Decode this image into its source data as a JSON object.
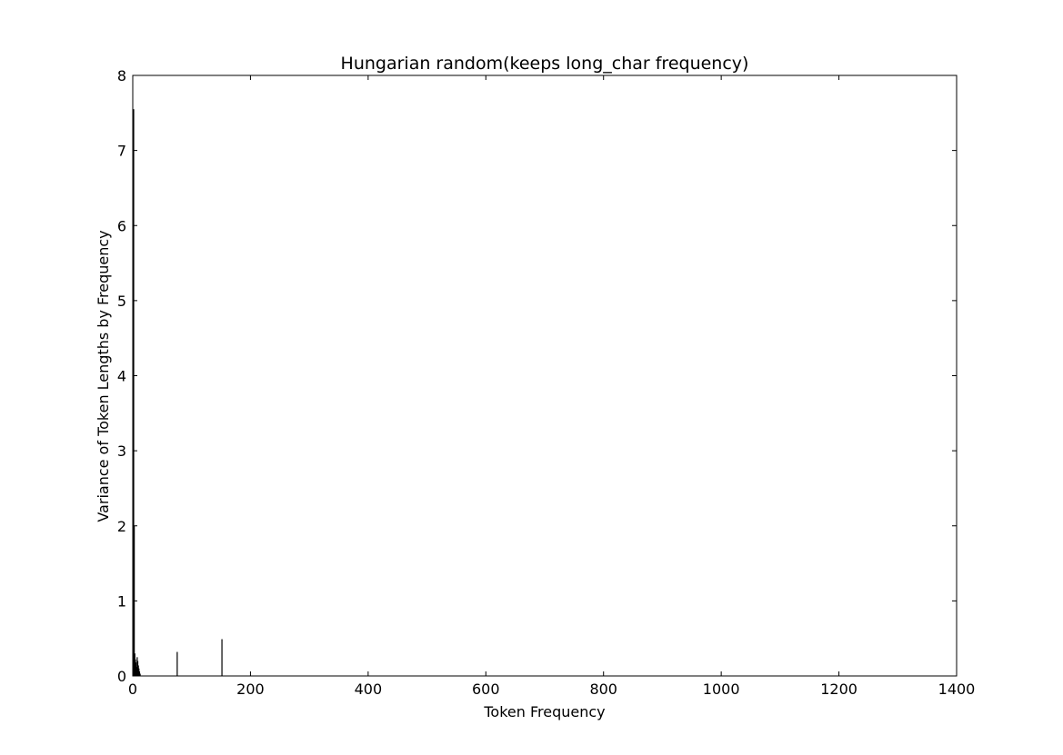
{
  "chart_data": {
    "type": "bar",
    "title": "Hungarian random(keeps long_char frequency)",
    "xlabel": "Token Frequency",
    "ylabel": "Variance of Token Lengths by Frequency",
    "xlim": [
      0,
      1400
    ],
    "ylim": [
      0,
      8
    ],
    "xticks": [
      "0",
      "200",
      "400",
      "600",
      "800",
      "1000",
      "1200",
      "1400"
    ],
    "yticks": [
      "0",
      "1",
      "2",
      "3",
      "4",
      "5",
      "6",
      "7",
      "8"
    ],
    "grid": false,
    "legend": "none",
    "bar_color": "#000000",
    "x": [
      1,
      2,
      3,
      4,
      5,
      6,
      7,
      8,
      9,
      10,
      11,
      12,
      75,
      151
    ],
    "values": [
      7.55,
      2.0,
      0.3,
      0.22,
      0.18,
      0.12,
      0.25,
      0.2,
      0.14,
      0.1,
      0.06,
      0.03,
      0.32,
      0.49
    ]
  }
}
